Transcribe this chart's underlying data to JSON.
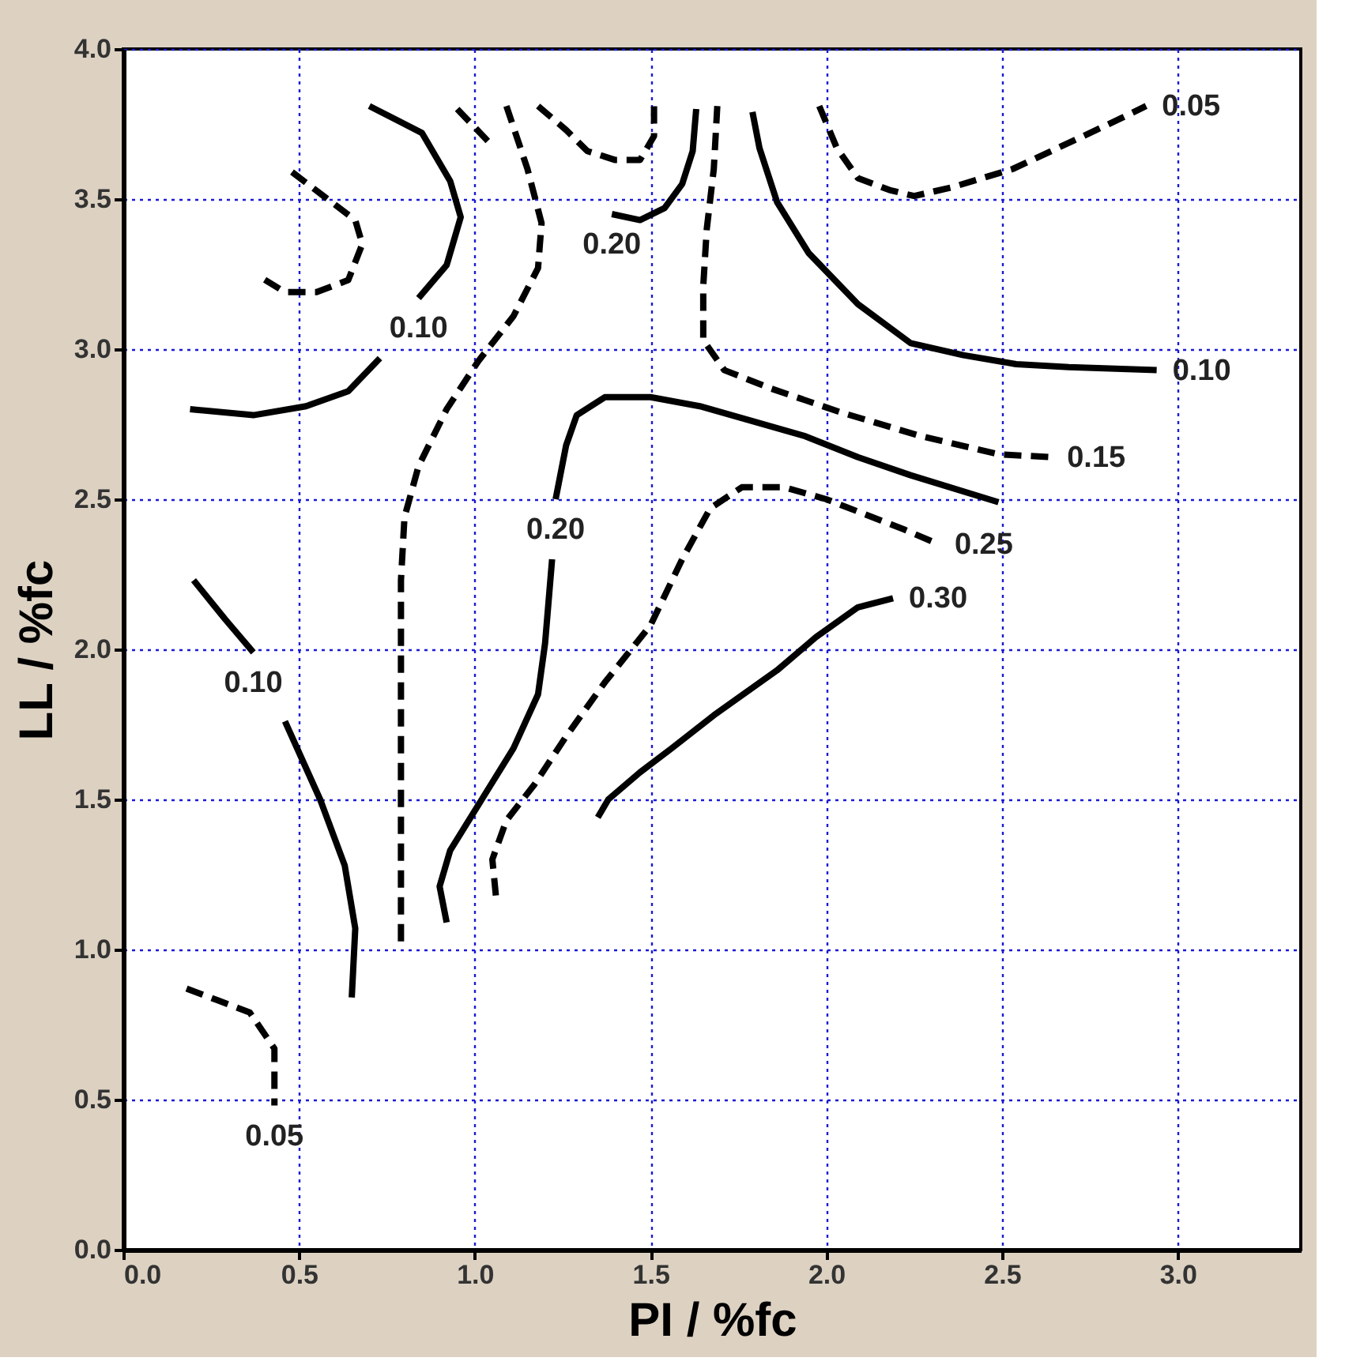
{
  "chart_data": {
    "type": "line",
    "xlabel": "PI / %fc",
    "ylabel": "LL / %fc",
    "xlim": [
      0,
      3.35
    ],
    "ylim": [
      0,
      4.0
    ],
    "xticks": [
      {
        "value": 0,
        "label": "0.0"
      },
      0.5,
      {
        "value": 1,
        "label": "1.0"
      },
      1.5,
      {
        "value": 2,
        "label": "2.0"
      },
      2.5,
      {
        "value": 3,
        "label": "3.0"
      }
    ],
    "yticks": [
      {
        "value": 0,
        "label": "0.0"
      },
      0.5,
      {
        "value": 1,
        "label": "1.0"
      },
      1.5,
      {
        "value": 2,
        "label": "2.0"
      },
      2.5,
      {
        "value": 3,
        "label": "3.0"
      },
      3.5,
      {
        "value": 4,
        "label": "4.0"
      }
    ],
    "grid": true,
    "marker": "none",
    "series": [
      {
        "name": "0.10",
        "color": "#000000",
        "line_style": "solid",
        "x": [
          0.7,
          0.85,
          0.93,
          0.96,
          0.92,
          0.84
        ],
        "values": [
          3.81,
          3.72,
          3.56,
          3.44,
          3.28,
          3.17
        ]
      },
      {
        "color": "#000000",
        "line_style": "solid",
        "x": [
          0.19,
          0.37,
          0.52,
          0.64,
          0.73
        ],
        "values": [
          2.8,
          2.78,
          2.81,
          2.86,
          2.97
        ]
      },
      {
        "color": "#000000",
        "line_style": "dashed",
        "x": [
          0.48,
          0.57,
          0.66,
          0.68,
          0.64,
          0.55,
          0.46,
          0.39
        ],
        "values": [
          3.59,
          3.51,
          3.43,
          3.35,
          3.23,
          3.19,
          3.19,
          3.24
        ]
      },
      {
        "color": "#000000",
        "line_style": "dashed",
        "x": [
          1.09,
          1.15,
          1.19,
          1.18,
          1.11,
          1.01,
          0.92,
          0.84,
          0.8,
          0.79,
          0.79,
          0.79,
          0.79
        ],
        "values": [
          3.81,
          3.6,
          3.42,
          3.27,
          3.11,
          2.96,
          2.8,
          2.61,
          2.44,
          2.23,
          1.76,
          1.35,
          1.0
        ]
      },
      {
        "color": "#000000",
        "line_style": "dashed",
        "x": [
          0.95,
          1.04
        ],
        "values": [
          3.8,
          3.69
        ]
      },
      {
        "color": "#000000",
        "line_style": "dashed",
        "x": [
          1.18,
          1.26,
          1.32,
          1.4,
          1.47,
          1.51,
          1.51
        ],
        "values": [
          3.81,
          3.73,
          3.66,
          3.63,
          3.63,
          3.71,
          3.81
        ]
      },
      {
        "name": "0.20",
        "color": "#000000",
        "line_style": "solid",
        "x": [
          1.63,
          1.62,
          1.59,
          1.54,
          1.47,
          1.39
        ],
        "values": [
          3.8,
          3.66,
          3.55,
          3.47,
          3.43,
          3.45
        ]
      },
      {
        "name": "0.15",
        "color": "#000000",
        "line_style": "dashed",
        "x": [
          1.69,
          1.68,
          1.66,
          1.65,
          1.65,
          1.71,
          1.84,
          2.04,
          2.27,
          2.49,
          2.64
        ],
        "values": [
          3.81,
          3.6,
          3.4,
          3.21,
          3.03,
          2.93,
          2.87,
          2.79,
          2.71,
          2.65,
          2.64
        ]
      },
      {
        "name": "0.10",
        "color": "#000000",
        "line_style": "solid",
        "x": [
          1.79,
          1.81,
          1.86,
          1.95,
          2.09,
          2.24,
          2.39,
          2.54,
          2.69,
          2.94
        ],
        "values": [
          3.79,
          3.67,
          3.49,
          3.32,
          3.15,
          3.02,
          2.98,
          2.95,
          2.94,
          2.93
        ]
      },
      {
        "name": "0.05",
        "color": "#000000",
        "line_style": "dashed",
        "x": [
          1.98,
          2.03,
          2.09,
          2.18,
          2.25,
          2.36,
          2.53,
          2.75,
          2.84,
          2.91
        ],
        "values": [
          3.81,
          3.67,
          3.57,
          3.53,
          3.51,
          3.54,
          3.6,
          3.72,
          3.77,
          3.81
        ]
      },
      {
        "color": "#000000",
        "line_style": "solid",
        "x": [
          0.92,
          0.9,
          0.93,
          1.02,
          1.11,
          1.18,
          1.2,
          1.22
        ],
        "values": [
          1.09,
          1.21,
          1.33,
          1.5,
          1.67,
          1.85,
          2.02,
          2.3
        ]
      },
      {
        "name": "0.20",
        "color": "#000000",
        "line_style": "solid",
        "x": [
          2.49,
          2.24,
          2.09,
          1.94,
          1.79,
          1.64,
          1.5,
          1.37,
          1.29,
          1.26,
          1.23
        ],
        "values": [
          2.49,
          2.58,
          2.64,
          2.71,
          2.76,
          2.81,
          2.84,
          2.84,
          2.78,
          2.68,
          2.5
        ]
      },
      {
        "name": "0.25",
        "color": "#000000",
        "line_style": "dashed",
        "x": [
          1.06,
          1.05,
          1.09,
          1.17,
          1.26,
          1.37,
          1.5,
          1.59,
          1.67,
          1.76,
          1.88,
          2.0,
          2.11,
          2.22,
          2.32
        ],
        "values": [
          1.18,
          1.3,
          1.43,
          1.55,
          1.71,
          1.89,
          2.08,
          2.3,
          2.47,
          2.54,
          2.54,
          2.5,
          2.45,
          2.4,
          2.35
        ]
      },
      {
        "name": "0.30",
        "color": "#000000",
        "line_style": "solid",
        "x": [
          1.35,
          1.38,
          1.47,
          1.56,
          1.68,
          1.86,
          1.97,
          2.09,
          2.19
        ],
        "values": [
          1.44,
          1.5,
          1.59,
          1.67,
          1.78,
          1.93,
          2.04,
          2.14,
          2.17
        ]
      },
      {
        "name": "0.10",
        "color": "#000000",
        "line_style": "solid",
        "x": [
          0.2,
          0.29,
          0.37
        ],
        "values": [
          2.23,
          2.1,
          1.99
        ]
      },
      {
        "color": "#000000",
        "line_style": "solid",
        "x": [
          0.46,
          0.56,
          0.63,
          0.66,
          0.65
        ],
        "values": [
          1.76,
          1.5,
          1.28,
          1.07,
          0.84
        ]
      },
      {
        "name": "0.05",
        "color": "#000000",
        "line_style": "dashed",
        "x": [
          0.18,
          0.27,
          0.36,
          0.43,
          0.43,
          0.43
        ],
        "values": [
          0.87,
          0.83,
          0.79,
          0.67,
          0.54,
          0.48
        ]
      }
    ]
  }
}
